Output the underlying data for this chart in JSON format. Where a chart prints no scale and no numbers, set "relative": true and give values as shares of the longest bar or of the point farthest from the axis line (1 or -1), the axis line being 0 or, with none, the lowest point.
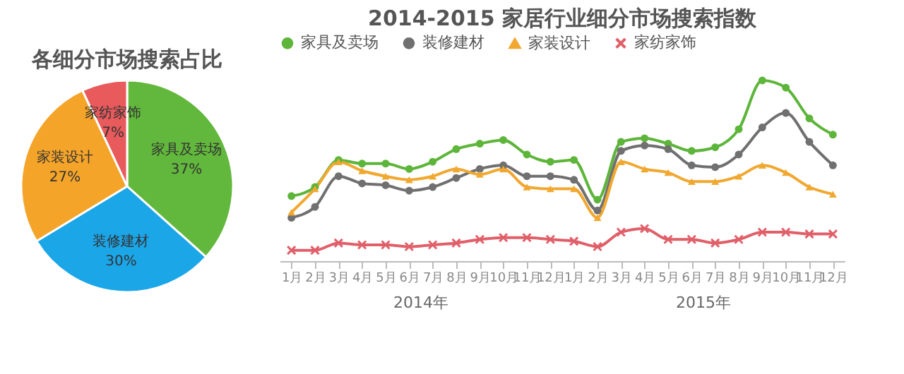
{
  "chart_data": [
    {
      "type": "pie",
      "title": "各细分市场搜索占比",
      "categories": [
        "家具及卖场",
        "装修建材",
        "家装设计",
        "家纺家饰"
      ],
      "values": [
        37,
        30,
        27,
        7
      ],
      "colors": [
        "#62b83c",
        "#1ba6e8",
        "#f5a42a",
        "#e85a5c"
      ],
      "value_labels": [
        "37%",
        "30%",
        "27%",
        "7%"
      ],
      "legend": false
    },
    {
      "type": "line",
      "title": "2014-2015 家居行业细分市场搜索指数",
      "relative": true,
      "legend": "top",
      "grid": false,
      "categories": [
        "1月",
        "2月",
        "3月",
        "4月",
        "5月",
        "6月",
        "7月",
        "8月",
        "9月",
        "10月",
        "11月",
        "12月",
        "1月",
        "2月",
        "3月",
        "4月",
        "5月",
        "6月",
        "7月",
        "8月",
        "9月",
        "10月",
        "11月",
        "12月"
      ],
      "annotations": [
        "2014年",
        "2015年"
      ],
      "series": [
        {
          "name": "家具及卖场",
          "color": "#5db53a",
          "marker": "circle",
          "values": [
            0.36,
            0.41,
            0.56,
            0.54,
            0.54,
            0.51,
            0.55,
            0.62,
            0.65,
            0.67,
            0.59,
            0.55,
            0.56,
            0.34,
            0.66,
            0.68,
            0.65,
            0.61,
            0.63,
            0.73,
            1,
            0.96,
            0.79,
            0.7
          ]
        },
        {
          "name": "装修建材",
          "color": "#707070",
          "marker": "circle",
          "values": [
            0.24,
            0.3,
            0.47,
            0.43,
            0.42,
            0.39,
            0.41,
            0.46,
            0.51,
            0.53,
            0.47,
            0.47,
            0.45,
            0.28,
            0.61,
            0.64,
            0.62,
            0.53,
            0.52,
            0.59,
            0.74,
            0.82,
            0.66,
            0.53
          ]
        },
        {
          "name": "家装设计",
          "color": "#f0a830",
          "marker": "triangle",
          "values": [
            0.27,
            0.4,
            0.55,
            0.5,
            0.47,
            0.45,
            0.47,
            0.51,
            0.48,
            0.51,
            0.41,
            0.4,
            0.4,
            0.24,
            0.55,
            0.51,
            0.49,
            0.44,
            0.44,
            0.47,
            0.53,
            0.49,
            0.41,
            0.37
          ]
        },
        {
          "name": "家纺家饰",
          "color": "#e0606a",
          "marker": "cross",
          "values": [
            0.06,
            0.06,
            0.1,
            0.09,
            0.09,
            0.08,
            0.09,
            0.1,
            0.12,
            0.13,
            0.13,
            0.12,
            0.11,
            0.08,
            0.16,
            0.18,
            0.12,
            0.12,
            0.1,
            0.12,
            0.16,
            0.16,
            0.15,
            0.15
          ]
        }
      ]
    }
  ]
}
